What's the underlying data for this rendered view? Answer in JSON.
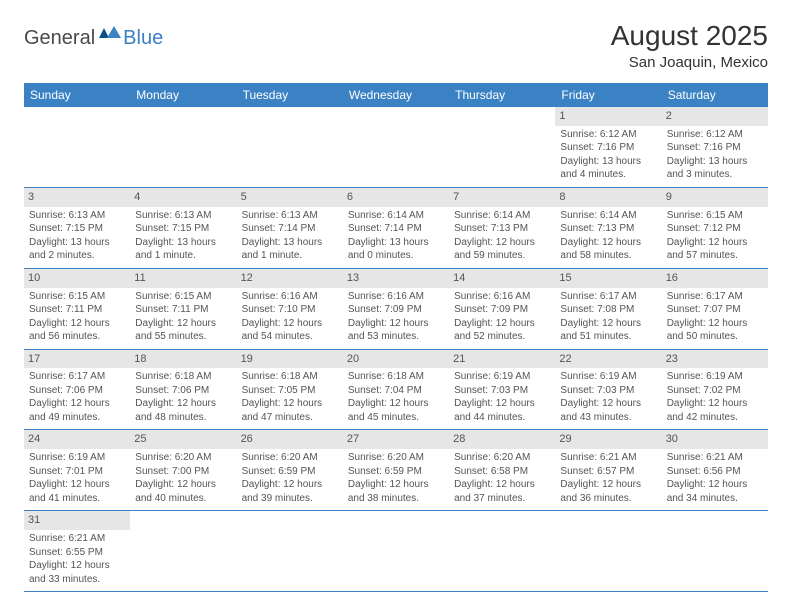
{
  "logo": {
    "text1": "General",
    "text2": "Blue"
  },
  "title": "August 2025",
  "location": "San Joaquin, Mexico",
  "colors": {
    "header_bg": "#3b82c4",
    "header_text": "#ffffff",
    "daynum_bg": "#e6e6e6",
    "border": "#3b82c4",
    "logo_gray": "#4a4a4a",
    "logo_blue": "#3b7fc4"
  },
  "weekdays": [
    "Sunday",
    "Monday",
    "Tuesday",
    "Wednesday",
    "Thursday",
    "Friday",
    "Saturday"
  ],
  "first_weekday_index": 5,
  "days": [
    {
      "n": 1,
      "sunrise": "6:12 AM",
      "sunset": "7:16 PM",
      "daylight": "13 hours and 4 minutes."
    },
    {
      "n": 2,
      "sunrise": "6:12 AM",
      "sunset": "7:16 PM",
      "daylight": "13 hours and 3 minutes."
    },
    {
      "n": 3,
      "sunrise": "6:13 AM",
      "sunset": "7:15 PM",
      "daylight": "13 hours and 2 minutes."
    },
    {
      "n": 4,
      "sunrise": "6:13 AM",
      "sunset": "7:15 PM",
      "daylight": "13 hours and 1 minute."
    },
    {
      "n": 5,
      "sunrise": "6:13 AM",
      "sunset": "7:14 PM",
      "daylight": "13 hours and 1 minute."
    },
    {
      "n": 6,
      "sunrise": "6:14 AM",
      "sunset": "7:14 PM",
      "daylight": "13 hours and 0 minutes."
    },
    {
      "n": 7,
      "sunrise": "6:14 AM",
      "sunset": "7:13 PM",
      "daylight": "12 hours and 59 minutes."
    },
    {
      "n": 8,
      "sunrise": "6:14 AM",
      "sunset": "7:13 PM",
      "daylight": "12 hours and 58 minutes."
    },
    {
      "n": 9,
      "sunrise": "6:15 AM",
      "sunset": "7:12 PM",
      "daylight": "12 hours and 57 minutes."
    },
    {
      "n": 10,
      "sunrise": "6:15 AM",
      "sunset": "7:11 PM",
      "daylight": "12 hours and 56 minutes."
    },
    {
      "n": 11,
      "sunrise": "6:15 AM",
      "sunset": "7:11 PM",
      "daylight": "12 hours and 55 minutes."
    },
    {
      "n": 12,
      "sunrise": "6:16 AM",
      "sunset": "7:10 PM",
      "daylight": "12 hours and 54 minutes."
    },
    {
      "n": 13,
      "sunrise": "6:16 AM",
      "sunset": "7:09 PM",
      "daylight": "12 hours and 53 minutes."
    },
    {
      "n": 14,
      "sunrise": "6:16 AM",
      "sunset": "7:09 PM",
      "daylight": "12 hours and 52 minutes."
    },
    {
      "n": 15,
      "sunrise": "6:17 AM",
      "sunset": "7:08 PM",
      "daylight": "12 hours and 51 minutes."
    },
    {
      "n": 16,
      "sunrise": "6:17 AM",
      "sunset": "7:07 PM",
      "daylight": "12 hours and 50 minutes."
    },
    {
      "n": 17,
      "sunrise": "6:17 AM",
      "sunset": "7:06 PM",
      "daylight": "12 hours and 49 minutes."
    },
    {
      "n": 18,
      "sunrise": "6:18 AM",
      "sunset": "7:06 PM",
      "daylight": "12 hours and 48 minutes."
    },
    {
      "n": 19,
      "sunrise": "6:18 AM",
      "sunset": "7:05 PM",
      "daylight": "12 hours and 47 minutes."
    },
    {
      "n": 20,
      "sunrise": "6:18 AM",
      "sunset": "7:04 PM",
      "daylight": "12 hours and 45 minutes."
    },
    {
      "n": 21,
      "sunrise": "6:19 AM",
      "sunset": "7:03 PM",
      "daylight": "12 hours and 44 minutes."
    },
    {
      "n": 22,
      "sunrise": "6:19 AM",
      "sunset": "7:03 PM",
      "daylight": "12 hours and 43 minutes."
    },
    {
      "n": 23,
      "sunrise": "6:19 AM",
      "sunset": "7:02 PM",
      "daylight": "12 hours and 42 minutes."
    },
    {
      "n": 24,
      "sunrise": "6:19 AM",
      "sunset": "7:01 PM",
      "daylight": "12 hours and 41 minutes."
    },
    {
      "n": 25,
      "sunrise": "6:20 AM",
      "sunset": "7:00 PM",
      "daylight": "12 hours and 40 minutes."
    },
    {
      "n": 26,
      "sunrise": "6:20 AM",
      "sunset": "6:59 PM",
      "daylight": "12 hours and 39 minutes."
    },
    {
      "n": 27,
      "sunrise": "6:20 AM",
      "sunset": "6:59 PM",
      "daylight": "12 hours and 38 minutes."
    },
    {
      "n": 28,
      "sunrise": "6:20 AM",
      "sunset": "6:58 PM",
      "daylight": "12 hours and 37 minutes."
    },
    {
      "n": 29,
      "sunrise": "6:21 AM",
      "sunset": "6:57 PM",
      "daylight": "12 hours and 36 minutes."
    },
    {
      "n": 30,
      "sunrise": "6:21 AM",
      "sunset": "6:56 PM",
      "daylight": "12 hours and 34 minutes."
    },
    {
      "n": 31,
      "sunrise": "6:21 AM",
      "sunset": "6:55 PM",
      "daylight": "12 hours and 33 minutes."
    }
  ],
  "labels": {
    "sunrise": "Sunrise: ",
    "sunset": "Sunset: ",
    "daylight": "Daylight: "
  }
}
